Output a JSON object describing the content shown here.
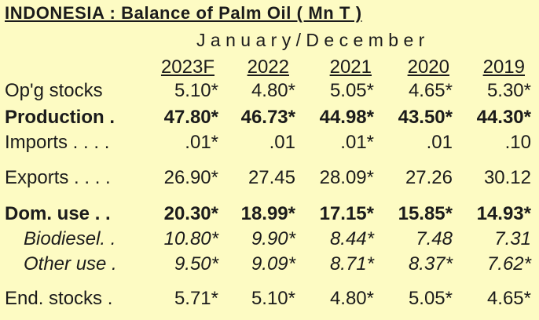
{
  "title": "INDONESIA :  Balance  of  Palm  Oil   ( Mn T )",
  "period": "January/December",
  "years": [
    "2023F",
    "2022",
    "2021",
    "2020",
    "2019"
  ],
  "rows": [
    {
      "label": "Op'g stocks",
      "values": [
        "5.10*",
        "4.80*",
        "5.05*",
        "4.65*",
        "5.30*"
      ],
      "style": "normal"
    },
    {
      "label": "Production .",
      "values": [
        "47.80*",
        "46.73*",
        "44.98*",
        "43.50*",
        "44.30*"
      ],
      "style": "bold"
    },
    {
      "label": "Imports . . . .",
      "values": [
        ".01*",
        ".01",
        ".01*",
        ".01",
        ".10"
      ],
      "style": "normal"
    },
    {
      "label": "Exports . . . .",
      "values": [
        "26.90*",
        "27.45",
        "28.09*",
        "27.26",
        "30.12"
      ],
      "style": "normal"
    },
    {
      "label": "Dom. use . .",
      "values": [
        "20.30*",
        "18.99*",
        "17.15*",
        "15.85*",
        "14.93*"
      ],
      "style": "bold"
    },
    {
      "label": "Biodiesel. .",
      "values": [
        "10.80*",
        "9.90*",
        "8.44*",
        "7.48",
        "7.31"
      ],
      "style": "italic"
    },
    {
      "label": "Other use .",
      "values": [
        "9.50*",
        "9.09*",
        "8.71*",
        "8.37*",
        "7.62*"
      ],
      "style": "italic"
    },
    {
      "label": "End. stocks .",
      "values": [
        "5.71*",
        "5.10*",
        "4.80*",
        "5.05*",
        "4.65*"
      ],
      "style": "normal"
    }
  ]
}
